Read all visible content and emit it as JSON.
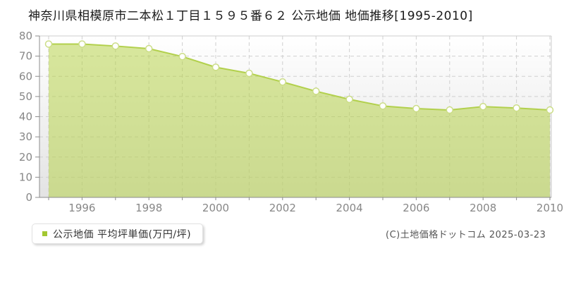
{
  "title": "神奈川県相模原市二本松１丁目１５９５番６２ 公示地価 地価推移[1995-2010]",
  "legend": {
    "label": "公示地価 平均坪単価(万円/坪)"
  },
  "copyright": "(C)土地価格ドットコム 2025-03-23",
  "colors": {
    "accent": "#a3c832",
    "line": "#b2d04c",
    "area_fill": "rgba(178,208,60,0.5)",
    "point_border": "#cbdd86",
    "grid": "#cfcfcf",
    "axis": "#8c8c8c",
    "tick_label": "#878787",
    "plot_border": "#cccccc",
    "plot_bg_top": "#ffffff",
    "plot_bg_bottom": "#e3e3e3"
  },
  "chart_data": {
    "type": "area",
    "title": "神奈川県相模原市二本松１丁目１５９５番６２ 公示地価 地価推移[1995-2010]",
    "x": [
      1995,
      1996,
      1997,
      1998,
      1999,
      2000,
      2001,
      2002,
      2003,
      2004,
      2005,
      2006,
      2007,
      2008,
      2009,
      2010
    ],
    "series": [
      {
        "name": "公示地価 平均坪単価(万円/坪)",
        "values": [
          76.0,
          76.0,
          75.0,
          73.7,
          69.8,
          64.5,
          61.5,
          57.2,
          52.6,
          48.6,
          45.3,
          44.0,
          43.3,
          45.0,
          44.3,
          43.3
        ]
      }
    ],
    "unit": "万円/坪",
    "xlabel": "",
    "ylabel": "",
    "ylim": [
      0,
      80
    ],
    "yticks": [
      0,
      10,
      20,
      30,
      40,
      50,
      60,
      70,
      80
    ],
    "xtick_labels": [
      "1996",
      "1998",
      "2000",
      "2002",
      "2004",
      "2006",
      "2008",
      "2010"
    ],
    "grid": true,
    "legend_position": "bottom-left"
  }
}
